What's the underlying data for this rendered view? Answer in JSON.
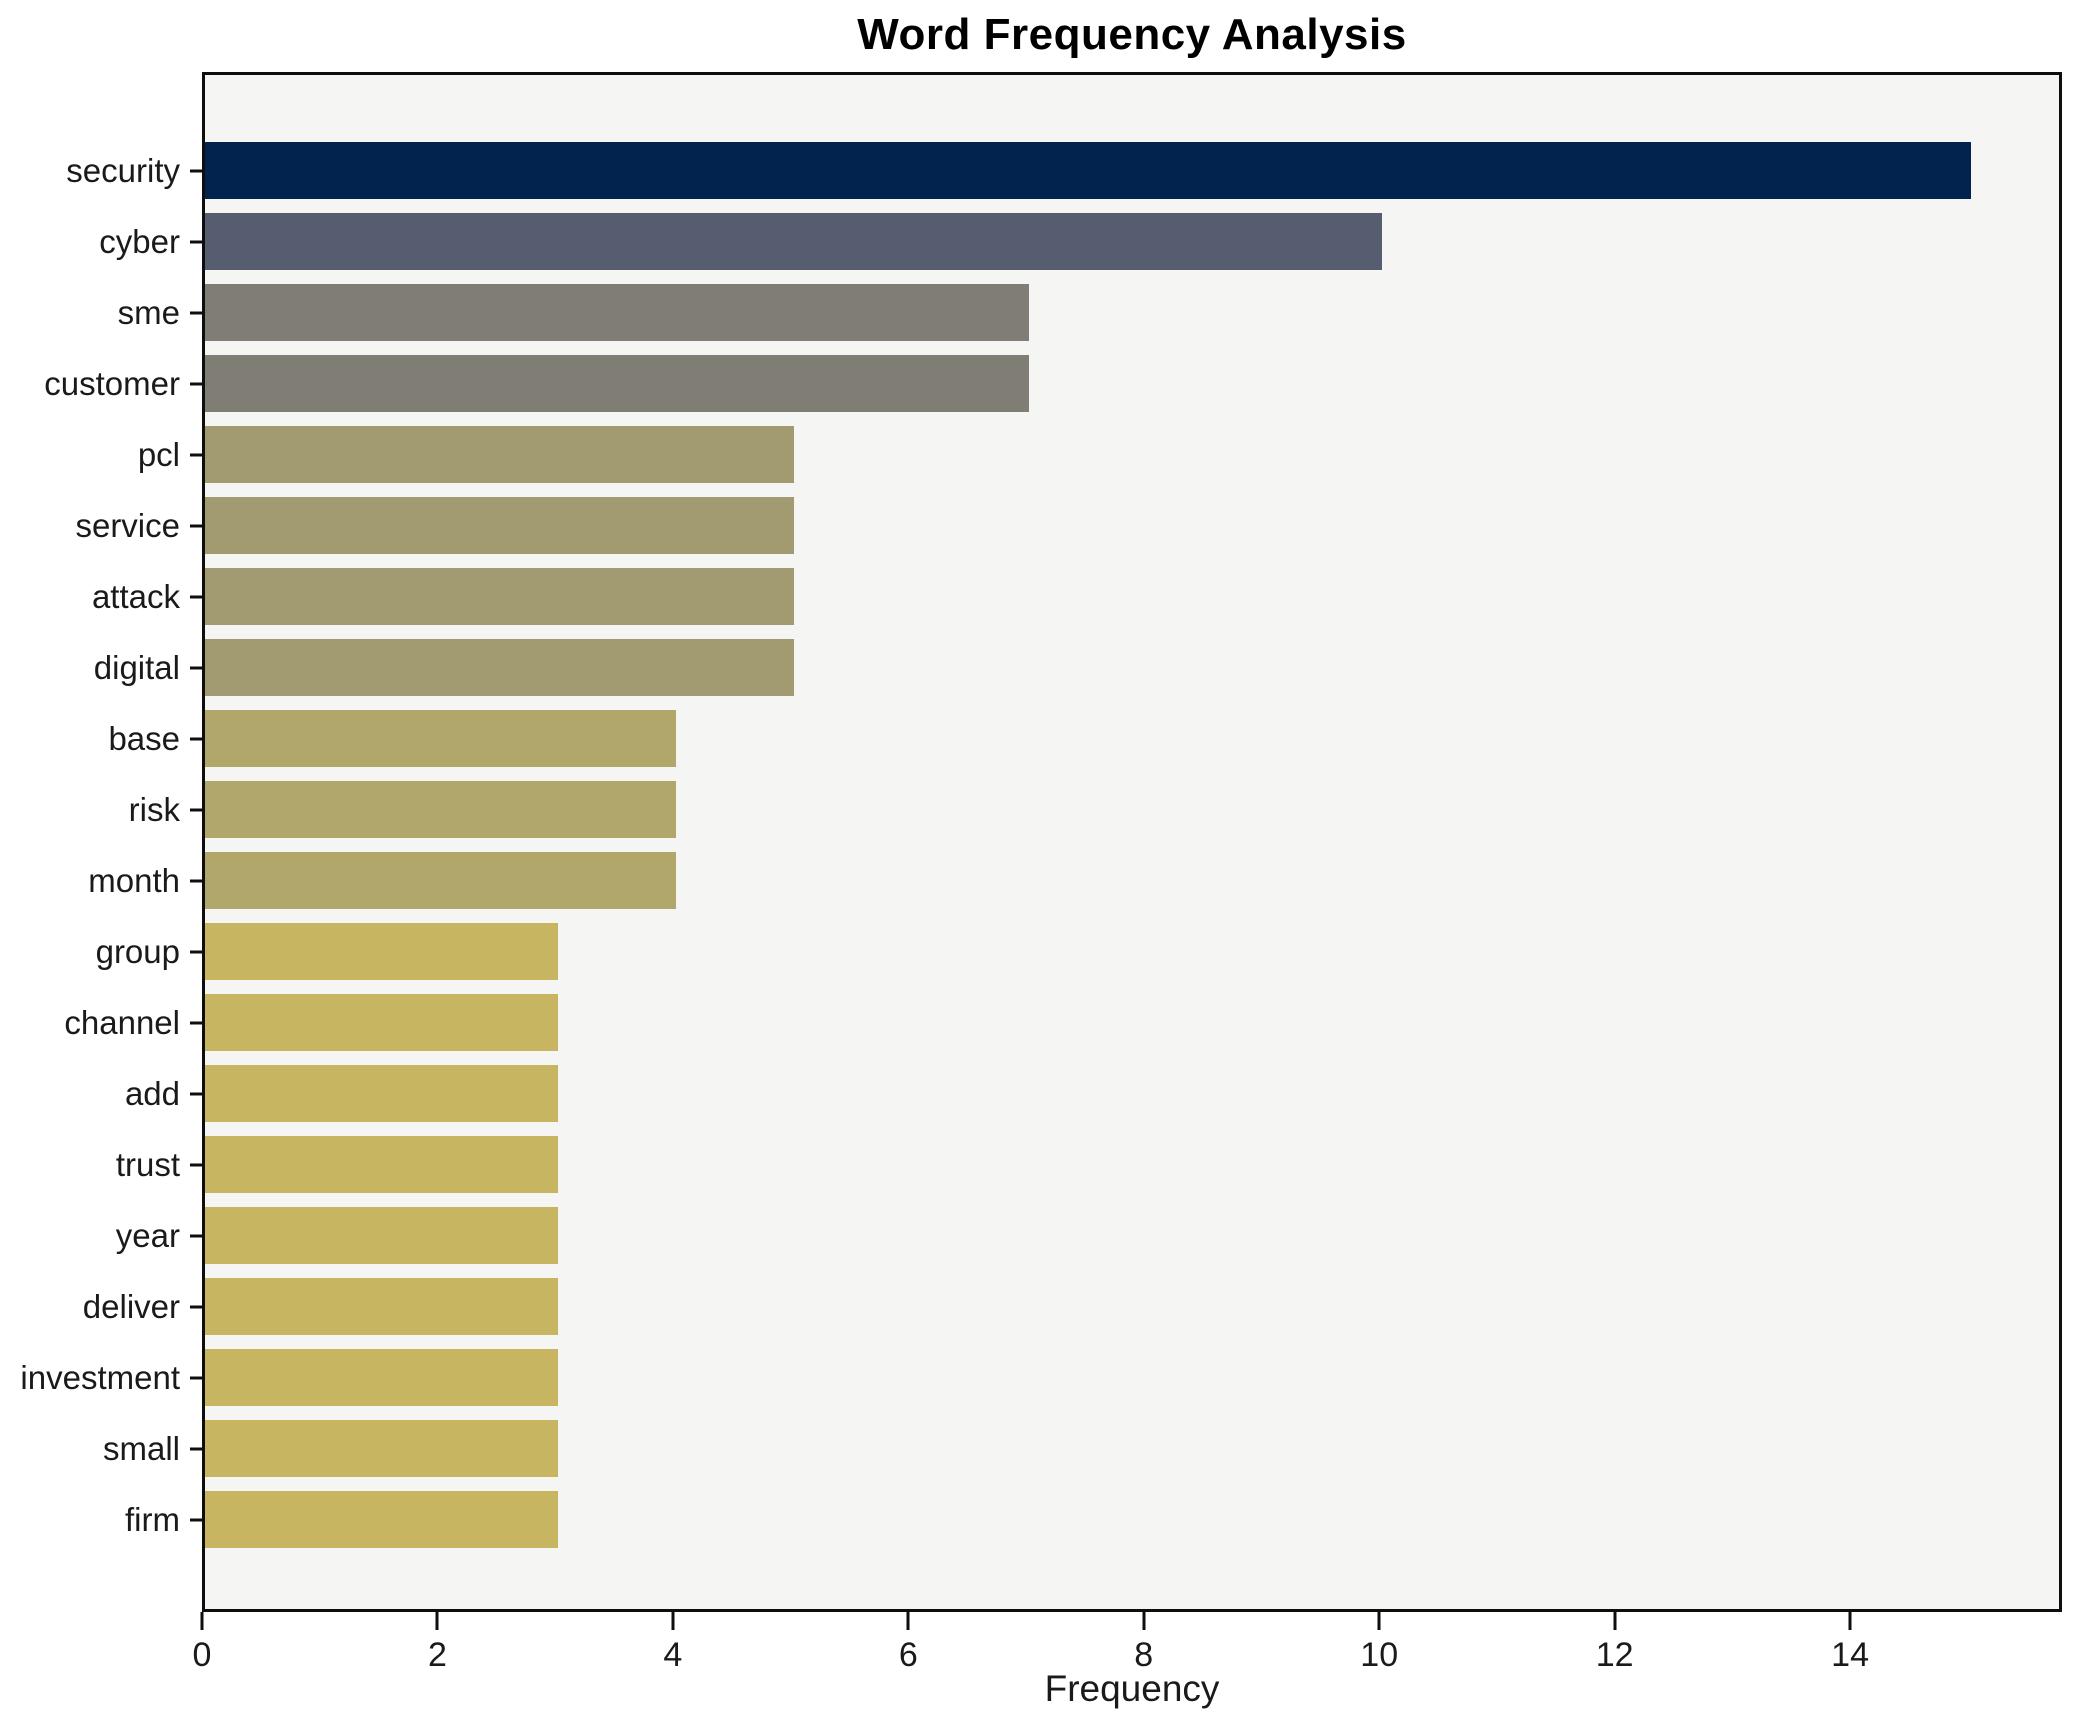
{
  "chart_data": {
    "type": "bar",
    "orientation": "horizontal",
    "title": "Word Frequency Analysis",
    "xlabel": "Frequency",
    "ylabel": "",
    "categories": [
      "security",
      "cyber",
      "sme",
      "customer",
      "pcl",
      "service",
      "attack",
      "digital",
      "base",
      "risk",
      "month",
      "group",
      "channel",
      "add",
      "trust",
      "year",
      "deliver",
      "investment",
      "small",
      "firm"
    ],
    "values": [
      15,
      10,
      7,
      7,
      5,
      5,
      5,
      5,
      4,
      4,
      4,
      3,
      3,
      3,
      3,
      3,
      3,
      3,
      3,
      3
    ],
    "bar_colors": [
      "#02234e",
      "#575d70",
      "#7f7d74",
      "#7f7d74",
      "#a29a70",
      "#a29a70",
      "#a29a70",
      "#a29a70",
      "#b2a76b",
      "#b2a76b",
      "#b2a76b",
      "#c8b562",
      "#c8b562",
      "#c8b562",
      "#c8b562",
      "#c8b562",
      "#c8b562",
      "#c8b562",
      "#c8b562",
      "#c8b562"
    ],
    "xlim": [
      0,
      15.8
    ],
    "xticks": [
      0,
      2,
      4,
      6,
      8,
      10,
      12,
      14
    ],
    "grid": false,
    "legend": null,
    "plot_background": "#f5f5f4",
    "figure_background": "#ffffff"
  }
}
